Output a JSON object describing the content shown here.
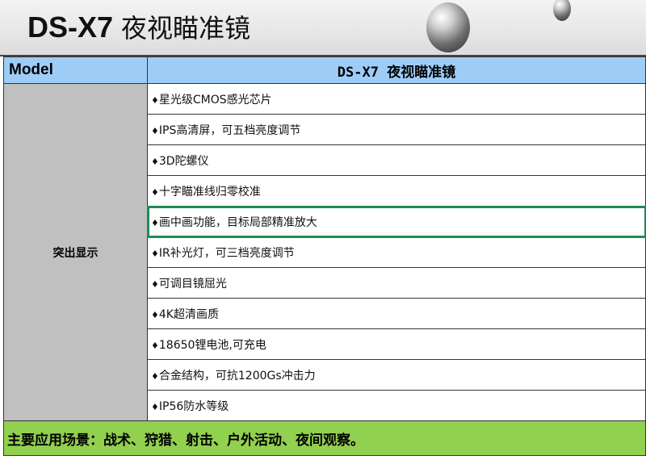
{
  "banner": {
    "model": "DS-X7",
    "title_cn": "夜视瞄准镜"
  },
  "header": {
    "left": "Model",
    "right": "DS-X7  夜视瞄准镜"
  },
  "section_label": "突出显示",
  "bullet": "♦",
  "features": [
    "星光级CMOS感光芯片",
    "IPS高清屏，可五档亮度调节",
    "3D陀螺仪",
    "十字瞄准线归零校准",
    "画中画功能，目标局部精准放大",
    "IR补光灯，可三档亮度调节",
    "可调目镜屈光",
    "4K超清画质",
    "18650锂电池,可充电",
    "合金结构，可抗1200Gs冲击力",
    "IP56防水等级"
  ],
  "selected_feature_index": 4,
  "footer": "主要应用场景：战术、狩猎、射击、户外活动、夜间观察。",
  "colors": {
    "header": "#9dcdf6",
    "side": "#c0c0c0",
    "footer": "#92d050",
    "selection": "#1e8c55"
  }
}
